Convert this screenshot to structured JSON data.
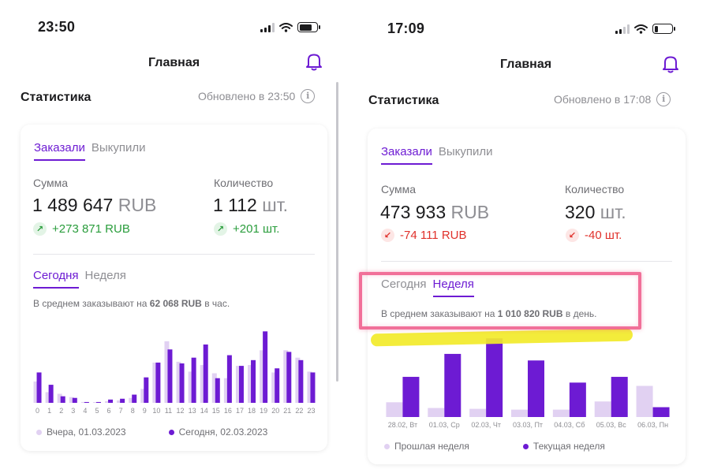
{
  "left": {
    "status": {
      "time": "23:50"
    },
    "nav": {
      "title": "Главная",
      "bell_icon": "bell-icon"
    },
    "stats": {
      "title": "Статистика",
      "updated": "Обновлено в 23:50"
    },
    "tabs": {
      "ordered": "Заказали",
      "bought": "Выкупили",
      "active": "ordered"
    },
    "sum": {
      "label": "Сумма",
      "value": "1 489 647",
      "unit": "RUB",
      "delta": "+273 871 RUB",
      "direction": "up"
    },
    "qty": {
      "label": "Количество",
      "value": "1 112",
      "unit": "шт.",
      "delta": "+201 шт.",
      "direction": "up"
    },
    "period": {
      "today": "Сегодня",
      "week": "Неделя",
      "active": "today"
    },
    "avg": {
      "prefix": "В среднем заказывают на",
      "amount": "62 068 RUB",
      "suffix": "в час."
    },
    "legend": {
      "previous": "Вчера, 01.03.2023",
      "current": "Сегодня, 02.03.2023"
    }
  },
  "right": {
    "status": {
      "time": "17:09"
    },
    "nav": {
      "title": "Главная",
      "bell_icon": "bell-icon"
    },
    "stats": {
      "title": "Статистика",
      "updated": "Обновлено в 17:08"
    },
    "tabs": {
      "ordered": "Заказали",
      "bought": "Выкупили",
      "active": "ordered"
    },
    "sum": {
      "label": "Сумма",
      "value": "473 933",
      "unit": "RUB",
      "delta": "-74 111 RUB",
      "direction": "down"
    },
    "qty": {
      "label": "Количество",
      "value": "320",
      "unit": "шт.",
      "delta": "-40 шт.",
      "direction": "down"
    },
    "period": {
      "today": "Сегодня",
      "week": "Неделя",
      "active": "week"
    },
    "avg": {
      "prefix": "В среднем заказывают на",
      "amount": "1 010 820 RUB",
      "suffix": "в день."
    },
    "legend": {
      "previous": "Прошлая неделя",
      "current": "Текущая неделя"
    }
  },
  "colors": {
    "accent": "#6d1bd3",
    "previous_series": "#e1d1f2",
    "current_series": "#6d1bd3",
    "delta_up": "#2a9d3c",
    "delta_down": "#e0312b",
    "highlight_box": "#ee5082",
    "highlight_marker": "#f2ea2a"
  },
  "chart_data": [
    {
      "type": "bar",
      "categories": [
        "0",
        "1",
        "2",
        "3",
        "4",
        "5",
        "6",
        "7",
        "8",
        "9",
        "10",
        "11",
        "12",
        "13",
        "14",
        "15",
        "16",
        "17",
        "18",
        "19",
        "20",
        "21",
        "22",
        "23"
      ],
      "series": [
        {
          "name": "Вчера, 01.03.2023",
          "values": [
            26,
            13,
            11,
            7,
            1,
            0.5,
            2,
            3,
            6,
            17,
            49,
            75,
            50,
            38,
            46,
            36,
            30,
            45,
            46,
            64,
            37,
            64,
            55,
            38
          ]
        },
        {
          "name": "Сегодня, 02.03.2023",
          "values": [
            37,
            22,
            8,
            6,
            1,
            1,
            4,
            5,
            10,
            31,
            49,
            65,
            48,
            55,
            71,
            30,
            58,
            45,
            52,
            87,
            42,
            62,
            52,
            37
          ]
        }
      ],
      "ylim": [
        0,
        95
      ]
    },
    {
      "type": "bar",
      "categories": [
        "28.02, Вт",
        "01.03, Ср",
        "02.03, Чт",
        "03.03, Пт",
        "04.03, Сб",
        "05.03, Вс",
        "06.03, Пн"
      ],
      "series": [
        {
          "name": "Прошлая неделя",
          "values": [
            18,
            11,
            10,
            9,
            9,
            19,
            38
          ]
        },
        {
          "name": "Текущая неделя",
          "values": [
            49,
            77,
            96,
            69,
            42,
            49,
            12
          ]
        }
      ],
      "ylim": [
        0,
        100
      ]
    }
  ]
}
